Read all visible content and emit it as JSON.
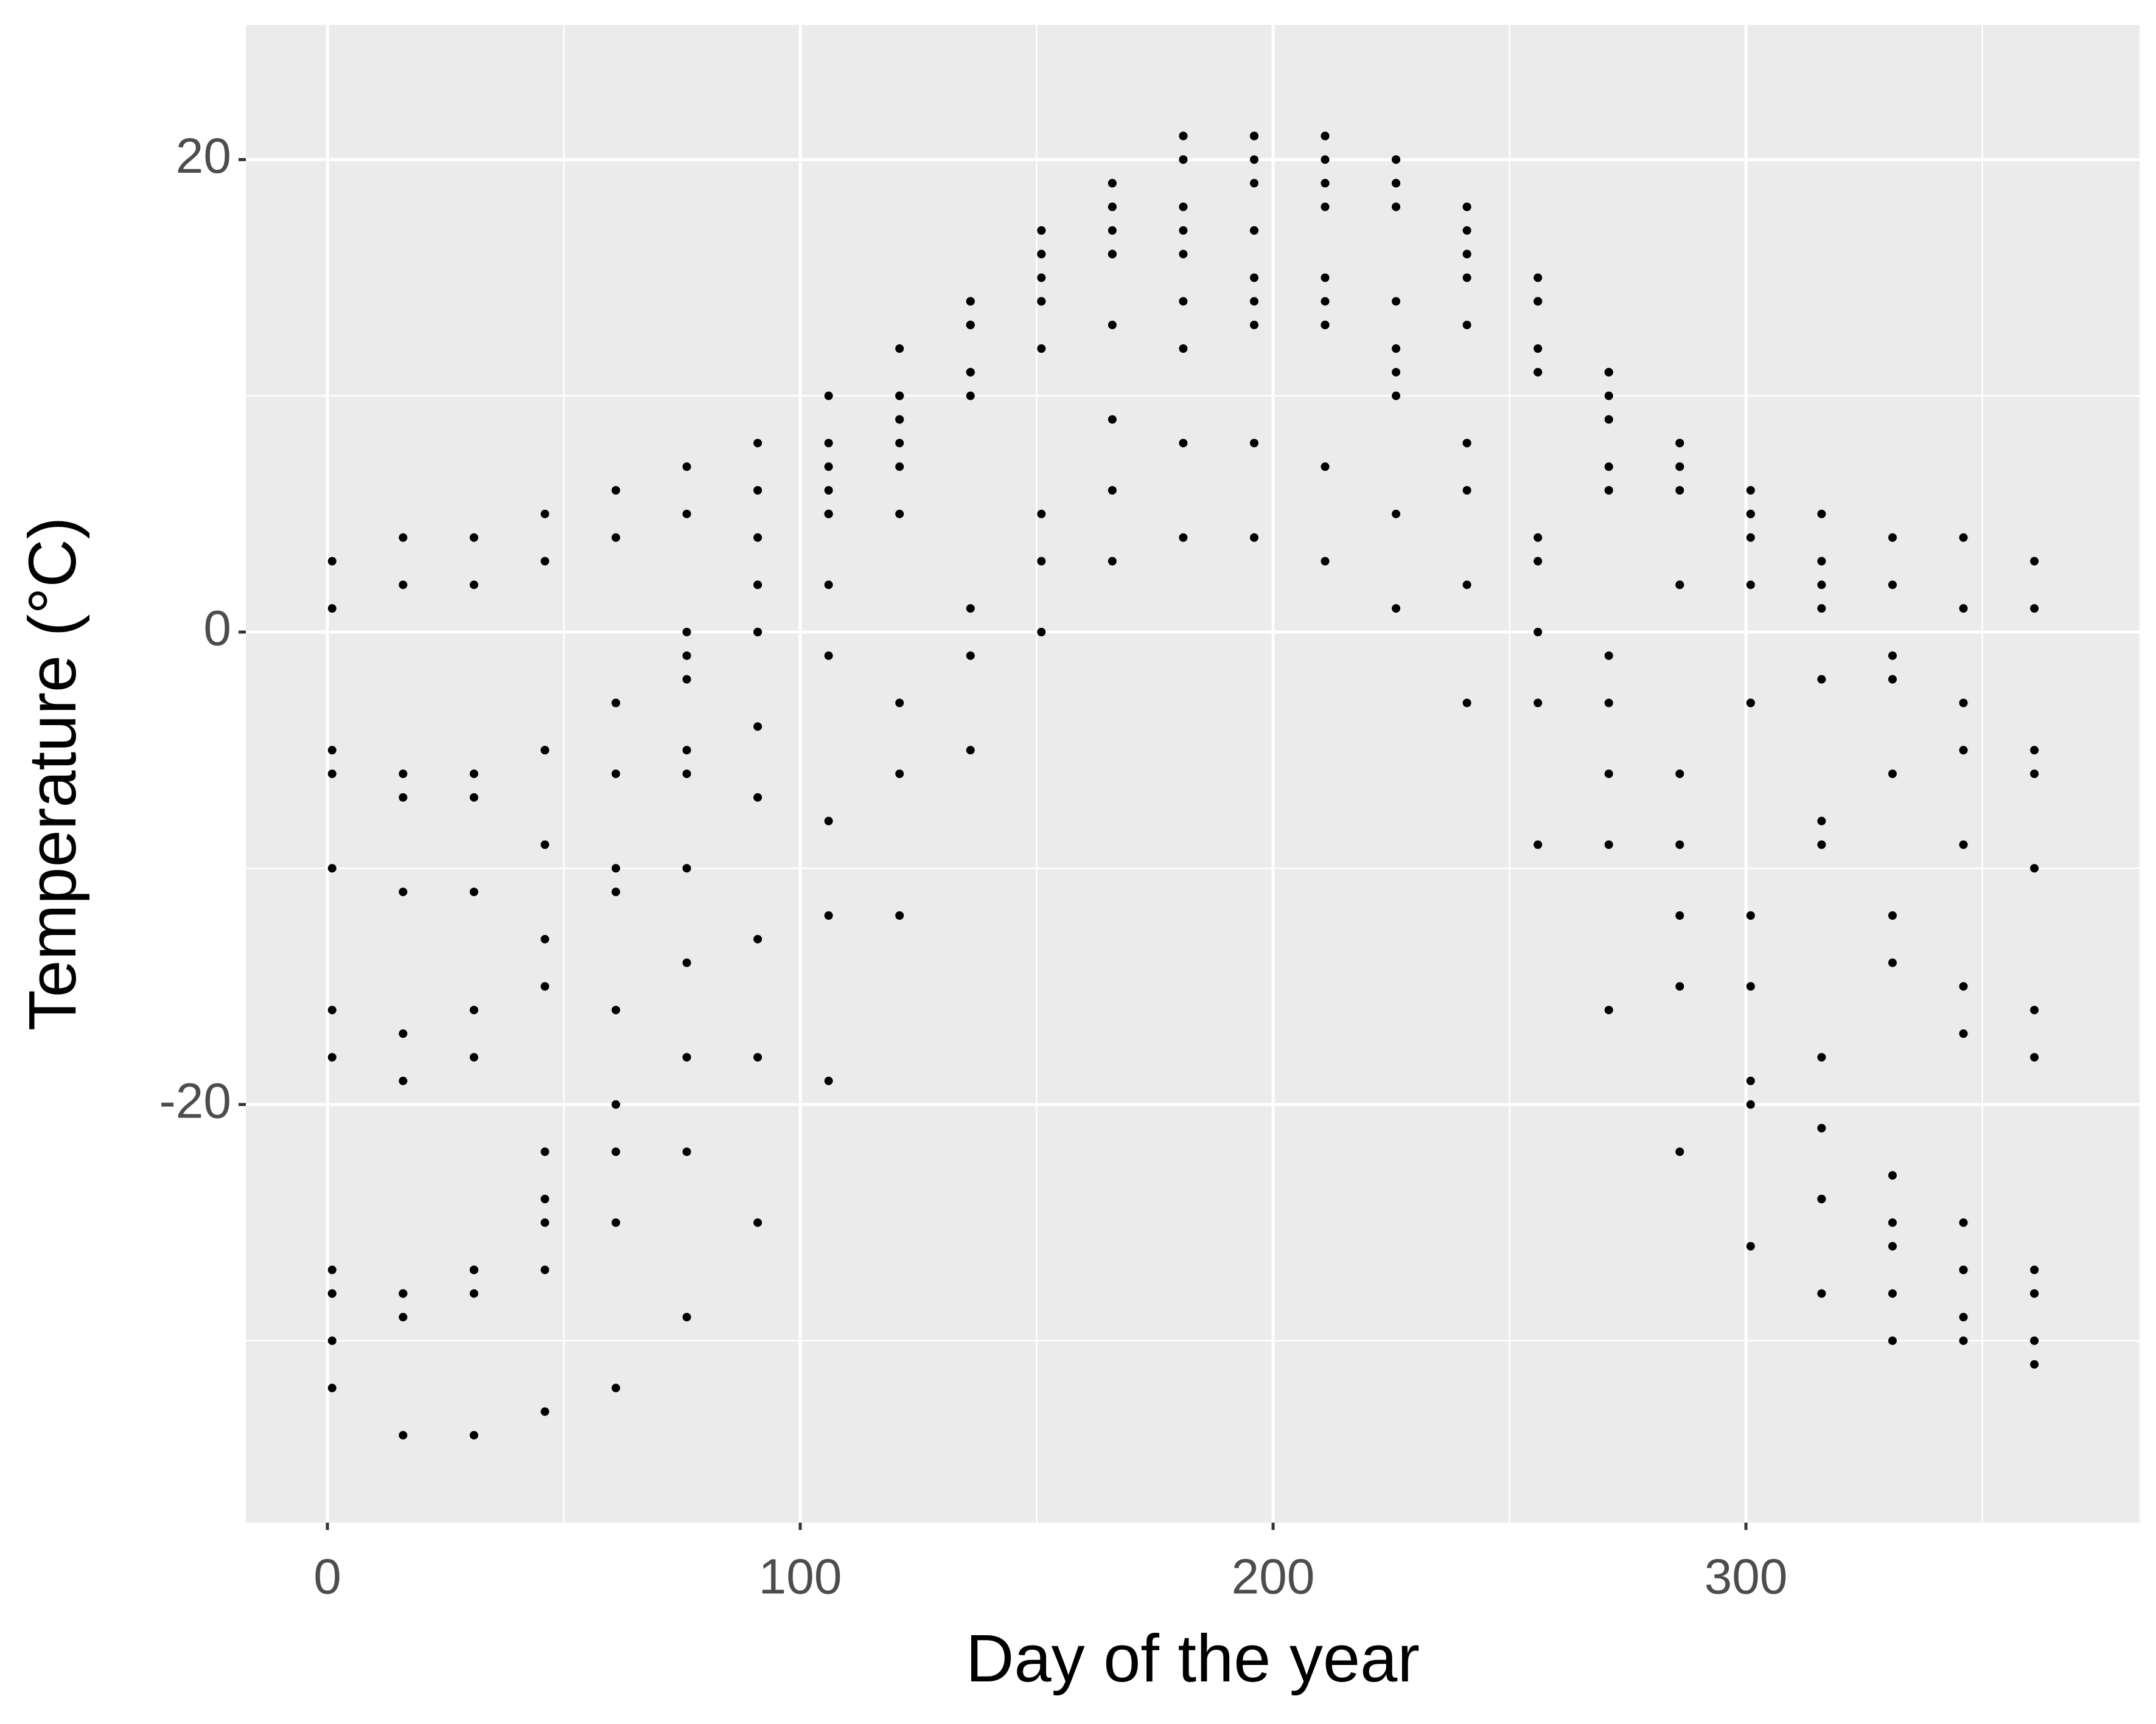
{
  "chart_data": {
    "type": "scatter",
    "xlabel": "Day of the year",
    "ylabel": "Temperature (°C)",
    "x": [
      1,
      16,
      31,
      46,
      61,
      76,
      91,
      106,
      121,
      136,
      151,
      166,
      181,
      196,
      211,
      226,
      241,
      256,
      271,
      286,
      301,
      316,
      331,
      346,
      361
    ],
    "series": [
      {
        "color": "#000000",
        "values": [
          3,
          4,
          4,
          5,
          6,
          7,
          8,
          10,
          12,
          13,
          15,
          16,
          17,
          17,
          18,
          18,
          16,
          14,
          11,
          8,
          6,
          5,
          4,
          4,
          3
        ]
      },
      {
        "color": "#000000",
        "values": [
          1,
          2,
          2,
          3,
          4,
          5,
          6,
          8,
          9,
          11,
          12,
          13,
          14,
          14,
          14,
          14,
          13,
          11,
          9,
          7,
          5,
          3,
          2,
          1,
          1
        ]
      },
      {
        "color": "#000000",
        "values": [
          -5,
          -6,
          -6,
          -5,
          -3,
          -1,
          2,
          5,
          8,
          11,
          14,
          16,
          18,
          19,
          19,
          19,
          17,
          14,
          11,
          8,
          5,
          2,
          -1,
          -3,
          -5
        ]
      },
      {
        "color": "#000000",
        "values": [
          -6,
          -7,
          -7,
          -5,
          -3,
          0,
          4,
          7,
          10,
          13,
          16,
          18,
          20,
          21,
          21,
          20,
          18,
          15,
          11,
          7,
          4,
          1,
          -2,
          -5,
          -6
        ]
      },
      {
        "color": "#000000",
        "values": [
          -10,
          -11,
          -11,
          -9,
          -6,
          -2,
          2,
          6,
          10,
          14,
          17,
          19,
          21,
          21,
          21,
          20,
          18,
          14,
          10,
          6,
          2,
          -2,
          -6,
          -9,
          -10
        ]
      },
      {
        "color": "#000000",
        "values": [
          -18,
          -19,
          -18,
          -15,
          -11,
          -6,
          0,
          5,
          10,
          14,
          17,
          19,
          21,
          21,
          20,
          19,
          16,
          12,
          7,
          2,
          -3,
          -9,
          -14,
          -17,
          -18
        ]
      },
      {
        "color": "#000000",
        "values": [
          -16,
          -17,
          -16,
          -13,
          -10,
          -5,
          0,
          5,
          9,
          13,
          16,
          18,
          20,
          20,
          19,
          18,
          15,
          11,
          6,
          2,
          -3,
          -8,
          -12,
          -15,
          -16
        ]
      },
      {
        "color": "#000000",
        "values": [
          -28,
          -28,
          -27,
          -24,
          -20,
          -14,
          -7,
          -1,
          5,
          10,
          14,
          17,
          18,
          17,
          15,
          12,
          8,
          3,
          -3,
          -9,
          -15,
          -21,
          -25,
          -27,
          -28
        ]
      },
      {
        "color": "#000000",
        "values": [
          -30,
          -29,
          -27,
          -22,
          -16,
          -10,
          -4,
          2,
          7,
          11,
          14,
          16,
          16,
          15,
          13,
          10,
          6,
          0,
          -6,
          -12,
          -19,
          -24,
          -28,
          -29,
          -30
        ]
      },
      {
        "color": "#000000",
        "values": [
          -27,
          -28,
          -27,
          -25,
          -22,
          -18,
          -13,
          -8,
          -3,
          1,
          5,
          9,
          12,
          13,
          13,
          11,
          8,
          4,
          -1,
          -6,
          -12,
          -18,
          -23,
          -25,
          -27
        ]
      },
      {
        "color": "#000000",
        "values": [
          -28,
          -28,
          -28,
          -27,
          -25,
          -22,
          -18,
          -12,
          -6,
          -1,
          3,
          6,
          8,
          8,
          7,
          5,
          2,
          -3,
          -9,
          -15,
          -20,
          -24,
          -26,
          -27,
          -28
        ]
      },
      {
        "color": "#000000",
        "values": [
          -32,
          -34,
          -34,
          -33,
          -32,
          -29,
          -25,
          -19,
          -12,
          -5,
          0,
          3,
          4,
          4,
          3,
          1,
          -3,
          -9,
          -16,
          -22,
          -26,
          -28,
          -30,
          -30,
          -31
        ]
      }
    ],
    "xlim": [
      -17.25,
      383.25
    ],
    "ylim": [
      -37.7,
      25.7
    ],
    "xticks": [
      0,
      100,
      200,
      300
    ],
    "yticks": [
      -20,
      0,
      20
    ],
    "xminorticks": [
      50,
      150,
      250,
      350
    ],
    "yminorticks": [
      -30,
      -10,
      10
    ],
    "grid": true
  }
}
